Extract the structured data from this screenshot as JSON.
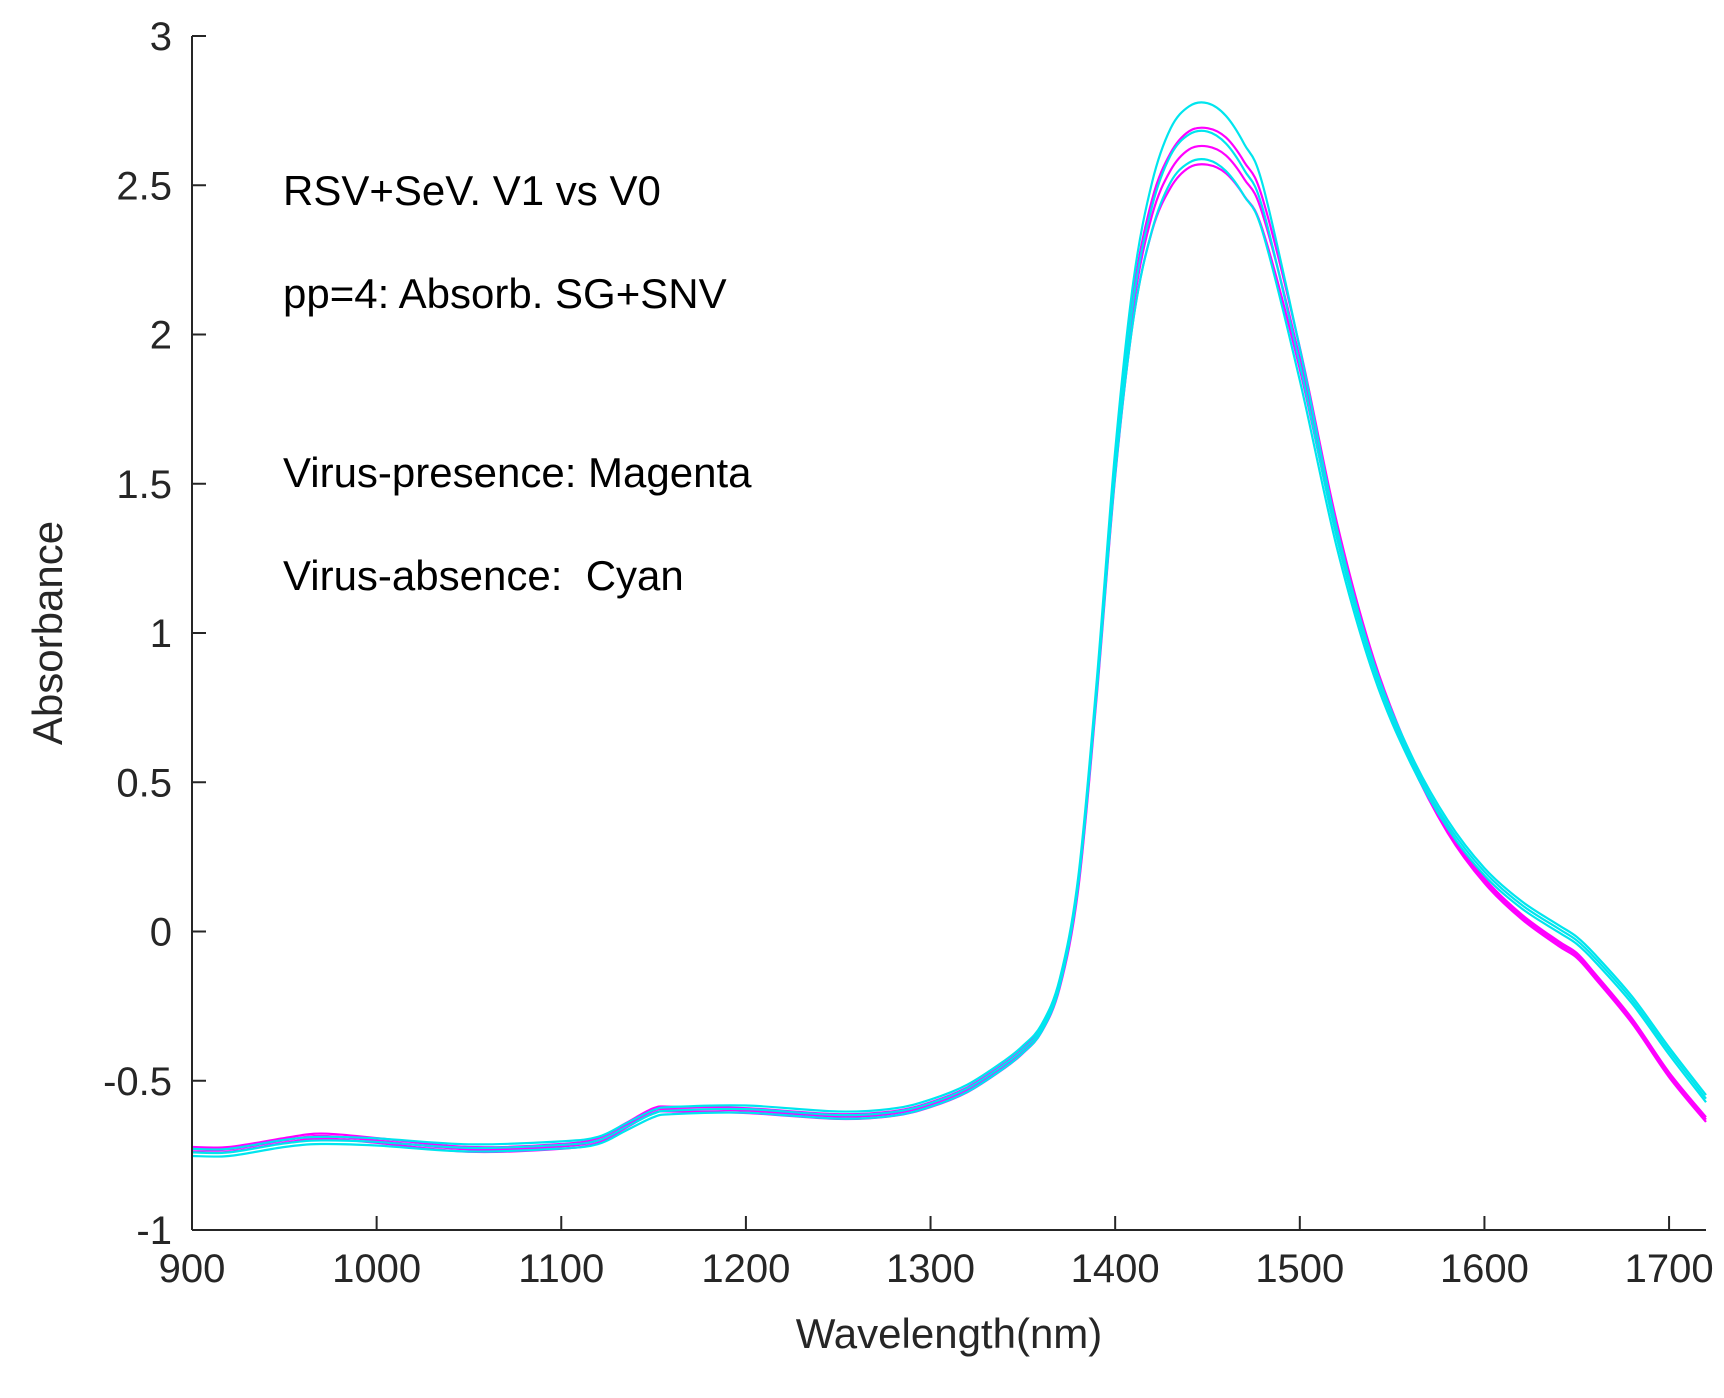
{
  "chart_data": {
    "type": "line",
    "title": "",
    "xlabel": "Wavelength(nm)",
    "ylabel": "Absorbance",
    "xlim": [
      900,
      1720
    ],
    "ylim": [
      -1,
      3
    ],
    "xticks": [
      900,
      1000,
      1100,
      1200,
      1300,
      1400,
      1500,
      1600,
      1700
    ],
    "yticks": [
      -1,
      -0.5,
      0,
      0.5,
      1,
      1.5,
      2,
      2.5,
      3
    ],
    "grid": false,
    "annotations": [
      "RSV+SeV. V1 vs V0",
      "pp=4: Absorb. SG+SNV",
      "Virus-presence: Magenta",
      "Virus-absence:  Cyan"
    ],
    "colors": {
      "magenta": "#ff00ff",
      "cyan": "#00e5ee"
    },
    "series": [
      {
        "name": "Virus-presence (Magenta) spectra",
        "color": "#ff00ff",
        "offsets": [
          0.02,
          0.0,
          -0.02
        ],
        "x": [
          900,
          920,
          950,
          970,
          1000,
          1050,
          1100,
          1120,
          1135,
          1150,
          1160,
          1200,
          1250,
          1280,
          1300,
          1320,
          1340,
          1350,
          1360,
          1370,
          1380,
          1390,
          1400,
          1410,
          1420,
          1430,
          1440,
          1450,
          1460,
          1470,
          1480,
          1500,
          1520,
          1540,
          1560,
          1580,
          1600,
          1620,
          1640,
          1650,
          1660,
          1680,
          1700,
          1720
        ],
        "y": [
          -0.73,
          -0.73,
          -0.7,
          -0.685,
          -0.7,
          -0.73,
          -0.72,
          -0.7,
          -0.65,
          -0.6,
          -0.595,
          -0.6,
          -0.62,
          -0.61,
          -0.58,
          -0.53,
          -0.45,
          -0.4,
          -0.33,
          -0.18,
          0.15,
          0.8,
          1.55,
          2.1,
          2.4,
          2.55,
          2.62,
          2.63,
          2.6,
          2.52,
          2.4,
          1.92,
          1.35,
          0.9,
          0.58,
          0.34,
          0.17,
          0.05,
          -0.04,
          -0.08,
          -0.15,
          -0.3,
          -0.48,
          -0.63
        ]
      },
      {
        "name": "Virus-absence (Cyan) spectra",
        "color": "#00e5ee",
        "offsets": [
          0.03,
          0.0,
          -0.03
        ],
        "x": [
          900,
          920,
          950,
          970,
          1000,
          1050,
          1100,
          1120,
          1135,
          1150,
          1160,
          1200,
          1250,
          1280,
          1300,
          1320,
          1340,
          1350,
          1360,
          1370,
          1380,
          1390,
          1400,
          1410,
          1420,
          1430,
          1440,
          1450,
          1460,
          1470,
          1480,
          1500,
          1520,
          1540,
          1560,
          1580,
          1600,
          1620,
          1640,
          1650,
          1660,
          1680,
          1700,
          1720
        ],
        "y": [
          -0.74,
          -0.74,
          -0.71,
          -0.7,
          -0.705,
          -0.725,
          -0.715,
          -0.7,
          -0.655,
          -0.61,
          -0.6,
          -0.595,
          -0.615,
          -0.605,
          -0.575,
          -0.525,
          -0.445,
          -0.395,
          -0.325,
          -0.17,
          0.17,
          0.82,
          1.57,
          2.12,
          2.43,
          2.6,
          2.67,
          2.68,
          2.64,
          2.55,
          2.42,
          1.9,
          1.32,
          0.88,
          0.58,
          0.36,
          0.2,
          0.09,
          0.01,
          -0.03,
          -0.09,
          -0.23,
          -0.4,
          -0.56
        ]
      }
    ]
  }
}
